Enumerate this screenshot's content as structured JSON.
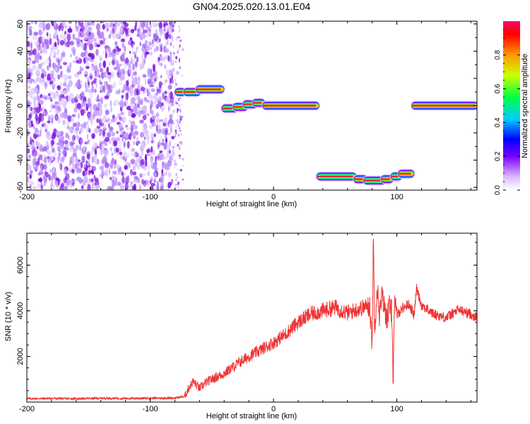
{
  "title": "GN04.2025.020.13.01.E04",
  "chart_data": [
    {
      "type": "heatmap",
      "xlabel": "Height of straight line (km)",
      "ylabel": "Frequency (Hz)",
      "xlim": [
        -200,
        165
      ],
      "ylim": [
        -62,
        62
      ],
      "xticks": [
        -200,
        -100,
        0,
        100
      ],
      "yticks": [
        -60,
        -40,
        -20,
        0,
        20,
        40,
        60
      ],
      "noise_region": {
        "x": [
          -200,
          -78
        ],
        "y": [
          -62,
          62
        ],
        "amplitude": "low",
        "color": "#8a2be2"
      },
      "segments": [
        {
          "x": [
            -79,
            -72
          ],
          "freq": 10
        },
        {
          "x": [
            -72,
            -60
          ],
          "freq": 10
        },
        {
          "x": [
            -62,
            -41
          ],
          "freq": 12
        },
        {
          "x": [
            -41,
            -30
          ],
          "freq": -2
        },
        {
          "x": [
            -32,
            -22
          ],
          "freq": -1
        },
        {
          "x": [
            -24,
            -14
          ],
          "freq": 1
        },
        {
          "x": [
            -16,
            -8
          ],
          "freq": 2
        },
        {
          "x": [
            -8,
            36
          ],
          "freq": 0
        },
        {
          "x": [
            36,
            66
          ],
          "freq": -52
        },
        {
          "x": [
            66,
            75
          ],
          "freq": -54
        },
        {
          "x": [
            74,
            90
          ],
          "freq": -55
        },
        {
          "x": [
            88,
            96
          ],
          "freq": -54
        },
        {
          "x": [
            96,
            103
          ],
          "freq": -52
        },
        {
          "x": [
            102,
            113
          ],
          "freq": -50
        },
        {
          "x": [
            113,
            165
          ],
          "freq": 0
        }
      ],
      "colorbar": {
        "label": "Normalized spectral amplitude",
        "ticks": [
          0,
          0.2,
          0.4,
          0.6,
          0.8
        ],
        "tick_labels": [
          "0.0",
          "0.2",
          "0.4",
          "0.6",
          "0.8"
        ],
        "colors": [
          "#ffffff",
          "#9900ff",
          "#0000ff",
          "#00ccff",
          "#00ff44",
          "#ccff00",
          "#ff9900",
          "#ff0000",
          "#ff0066"
        ]
      }
    },
    {
      "type": "line",
      "xlabel": "Height of straight line (km)",
      "ylabel": "SNR (10 * v/v)",
      "xlim": [
        -200,
        165
      ],
      "ylim": [
        0,
        7400
      ],
      "xticks": [
        -200,
        -100,
        0,
        100
      ],
      "yticks": [
        2000,
        4000,
        6000
      ],
      "series": [
        {
          "color": "#ee3333",
          "x": [
            -200,
            -180,
            -160,
            -140,
            -120,
            -100,
            -80,
            -72,
            -68,
            -65,
            -60,
            -55,
            -50,
            -40,
            -30,
            -20,
            -10,
            0,
            10,
            20,
            30,
            40,
            50,
            60,
            70,
            78,
            80,
            81,
            82,
            84,
            86,
            88,
            90,
            92,
            94,
            96,
            97,
            98,
            100,
            104,
            110,
            114,
            116,
            120,
            130,
            140,
            150,
            160,
            165
          ],
          "y": [
            150,
            160,
            150,
            170,
            160,
            170,
            180,
            250,
            700,
            900,
            600,
            850,
            1000,
            1250,
            1650,
            2000,
            2300,
            2600,
            3000,
            3500,
            3850,
            4000,
            4150,
            3900,
            4100,
            4250,
            2500,
            7300,
            3200,
            5100,
            3800,
            4700,
            4100,
            3700,
            4200,
            3900,
            1000,
            4300,
            3800,
            4100,
            4300,
            3800,
            5000,
            4250,
            3850,
            3700,
            4050,
            3850,
            3700
          ]
        }
      ]
    }
  ]
}
